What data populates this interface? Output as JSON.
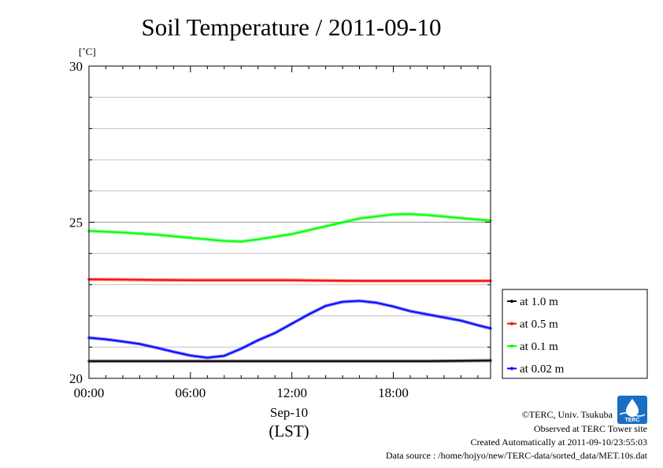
{
  "chart_data": {
    "type": "line",
    "title": "Soil Temperature / 2011-09-10",
    "ylabel": "[˚C]",
    "ylim": [
      20,
      30
    ],
    "yticks": [
      20,
      25,
      30
    ],
    "yminor_grid": [
      21,
      22,
      23,
      24,
      26,
      27,
      28,
      29
    ],
    "xlim": [
      0,
      23.75
    ],
    "xticks": [
      {
        "hour": 0,
        "label": "00:00"
      },
      {
        "hour": 6,
        "label": "06:00"
      },
      {
        "hour": 12,
        "label": "12:00"
      },
      {
        "hour": 18,
        "label": "18:00"
      }
    ],
    "xsub": "Sep-10",
    "xlabel": "(LST)",
    "grid": true,
    "legend_position": "right",
    "series": [
      {
        "name": "at 1.0 m",
        "color": "#000000",
        "x": [
          0,
          2,
          4,
          6,
          8,
          10,
          12,
          14,
          16,
          18,
          20,
          22,
          23.75
        ],
        "y": [
          20.55,
          20.55,
          20.55,
          20.55,
          20.55,
          20.55,
          20.55,
          20.55,
          20.55,
          20.55,
          20.55,
          20.56,
          20.57
        ]
      },
      {
        "name": "at 0.5 m",
        "color": "#ff0000",
        "x": [
          0,
          2,
          4,
          6,
          8,
          10,
          12,
          14,
          16,
          18,
          20,
          22,
          23.75
        ],
        "y": [
          23.17,
          23.16,
          23.15,
          23.14,
          23.14,
          23.14,
          23.14,
          23.13,
          23.12,
          23.12,
          23.12,
          23.12,
          23.12
        ]
      },
      {
        "name": "at 0.1 m",
        "color": "#00ff00",
        "x": [
          0,
          2,
          4,
          6,
          8,
          9,
          10,
          12,
          14,
          16,
          18,
          19,
          20,
          22,
          23.75
        ],
        "y": [
          24.72,
          24.67,
          24.6,
          24.5,
          24.4,
          24.38,
          24.45,
          24.62,
          24.87,
          25.12,
          25.25,
          25.26,
          25.23,
          25.13,
          25.05
        ]
      },
      {
        "name": "at 0.02 m",
        "color": "#0000ff",
        "x": [
          0,
          1,
          2,
          3,
          4,
          5,
          6,
          7,
          8,
          9,
          10,
          11,
          12,
          13,
          14,
          15,
          16,
          17,
          18,
          19,
          20,
          21,
          22,
          23,
          23.75
        ],
        "y": [
          21.3,
          21.25,
          21.18,
          21.1,
          20.98,
          20.85,
          20.73,
          20.66,
          20.72,
          20.95,
          21.22,
          21.45,
          21.75,
          22.05,
          22.32,
          22.45,
          22.48,
          22.42,
          22.3,
          22.15,
          22.05,
          21.95,
          21.85,
          21.7,
          21.6
        ]
      }
    ]
  },
  "footer": {
    "copyright": "©TERC, Univ. Tsukuba",
    "observed": "Observed at TERC Tower site",
    "created": "Created Automatically at 2011-09-10/23:55:03",
    "source": "Data source : /home/hojyo/new/TERC-data/sorted_data/MET.10s.dat"
  },
  "logo": {
    "text": "TERC",
    "color": "#1a6fc0"
  }
}
